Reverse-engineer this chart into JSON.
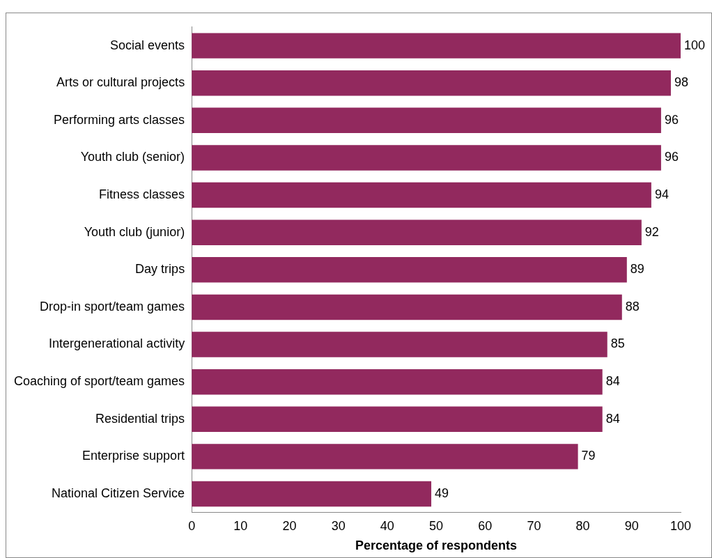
{
  "chart_data": {
    "type": "bar",
    "orientation": "horizontal",
    "categories": [
      "Social events",
      "Arts or cultural projects",
      "Performing arts classes",
      "Youth club (senior)",
      "Fitness classes",
      "Youth club (junior)",
      "Day trips",
      "Drop-in sport/team games",
      "Intergenerational activity",
      "Coaching of sport/team games",
      "Residential trips",
      "Enterprise support",
      "National Citizen Service"
    ],
    "values": [
      100,
      98,
      96,
      96,
      94,
      92,
      89,
      88,
      85,
      84,
      84,
      79,
      49
    ],
    "color": "#92295e",
    "data_labels": true,
    "xlabel": "Percentage of respondents",
    "xlim": [
      0,
      100
    ],
    "xticks": [
      0,
      10,
      20,
      30,
      40,
      50,
      60,
      70,
      80,
      90,
      100
    ],
    "grid": false,
    "legend": false
  }
}
